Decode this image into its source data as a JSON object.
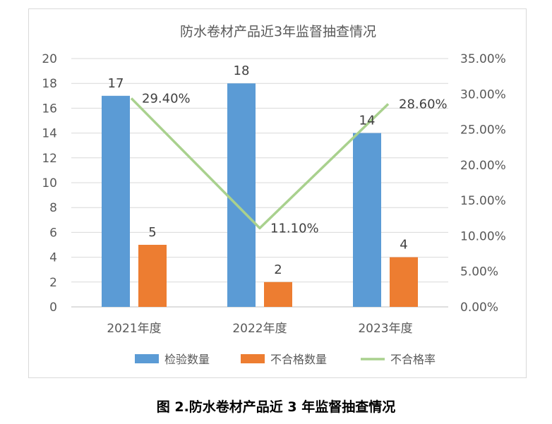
{
  "chart_data": {
    "type": "bar",
    "title": "防水卷材产品近3年监督抽查情况",
    "categories": [
      "2021年度",
      "2022年度",
      "2023年度"
    ],
    "series": [
      {
        "name": "检验数量",
        "type": "bar",
        "axis": "left",
        "color": "#5b9bd5",
        "values": [
          17,
          18,
          14
        ]
      },
      {
        "name": "不合格数量",
        "type": "bar",
        "axis": "left",
        "color": "#ed7d31",
        "values": [
          5,
          2,
          4
        ]
      },
      {
        "name": "不合格率",
        "type": "line",
        "axis": "right",
        "color": "#a9d18e",
        "values": [
          0.294,
          0.111,
          0.286
        ],
        "labels": [
          "29.40%",
          "11.10%",
          "28.60%"
        ]
      }
    ],
    "y_left": {
      "range": [
        0,
        20
      ],
      "ticks": [
        "0",
        "2",
        "4",
        "6",
        "8",
        "10",
        "12",
        "14",
        "16",
        "18",
        "20"
      ]
    },
    "y_right": {
      "range": [
        0,
        0.35
      ],
      "ticks": [
        "0.00%",
        "5.00%",
        "10.00%",
        "15.00%",
        "20.00%",
        "25.00%",
        "30.00%",
        "35.00%"
      ]
    },
    "grid": true,
    "legend": "bottom"
  },
  "caption": "图 2.防水卷材产品近 3 年监督抽查情况"
}
